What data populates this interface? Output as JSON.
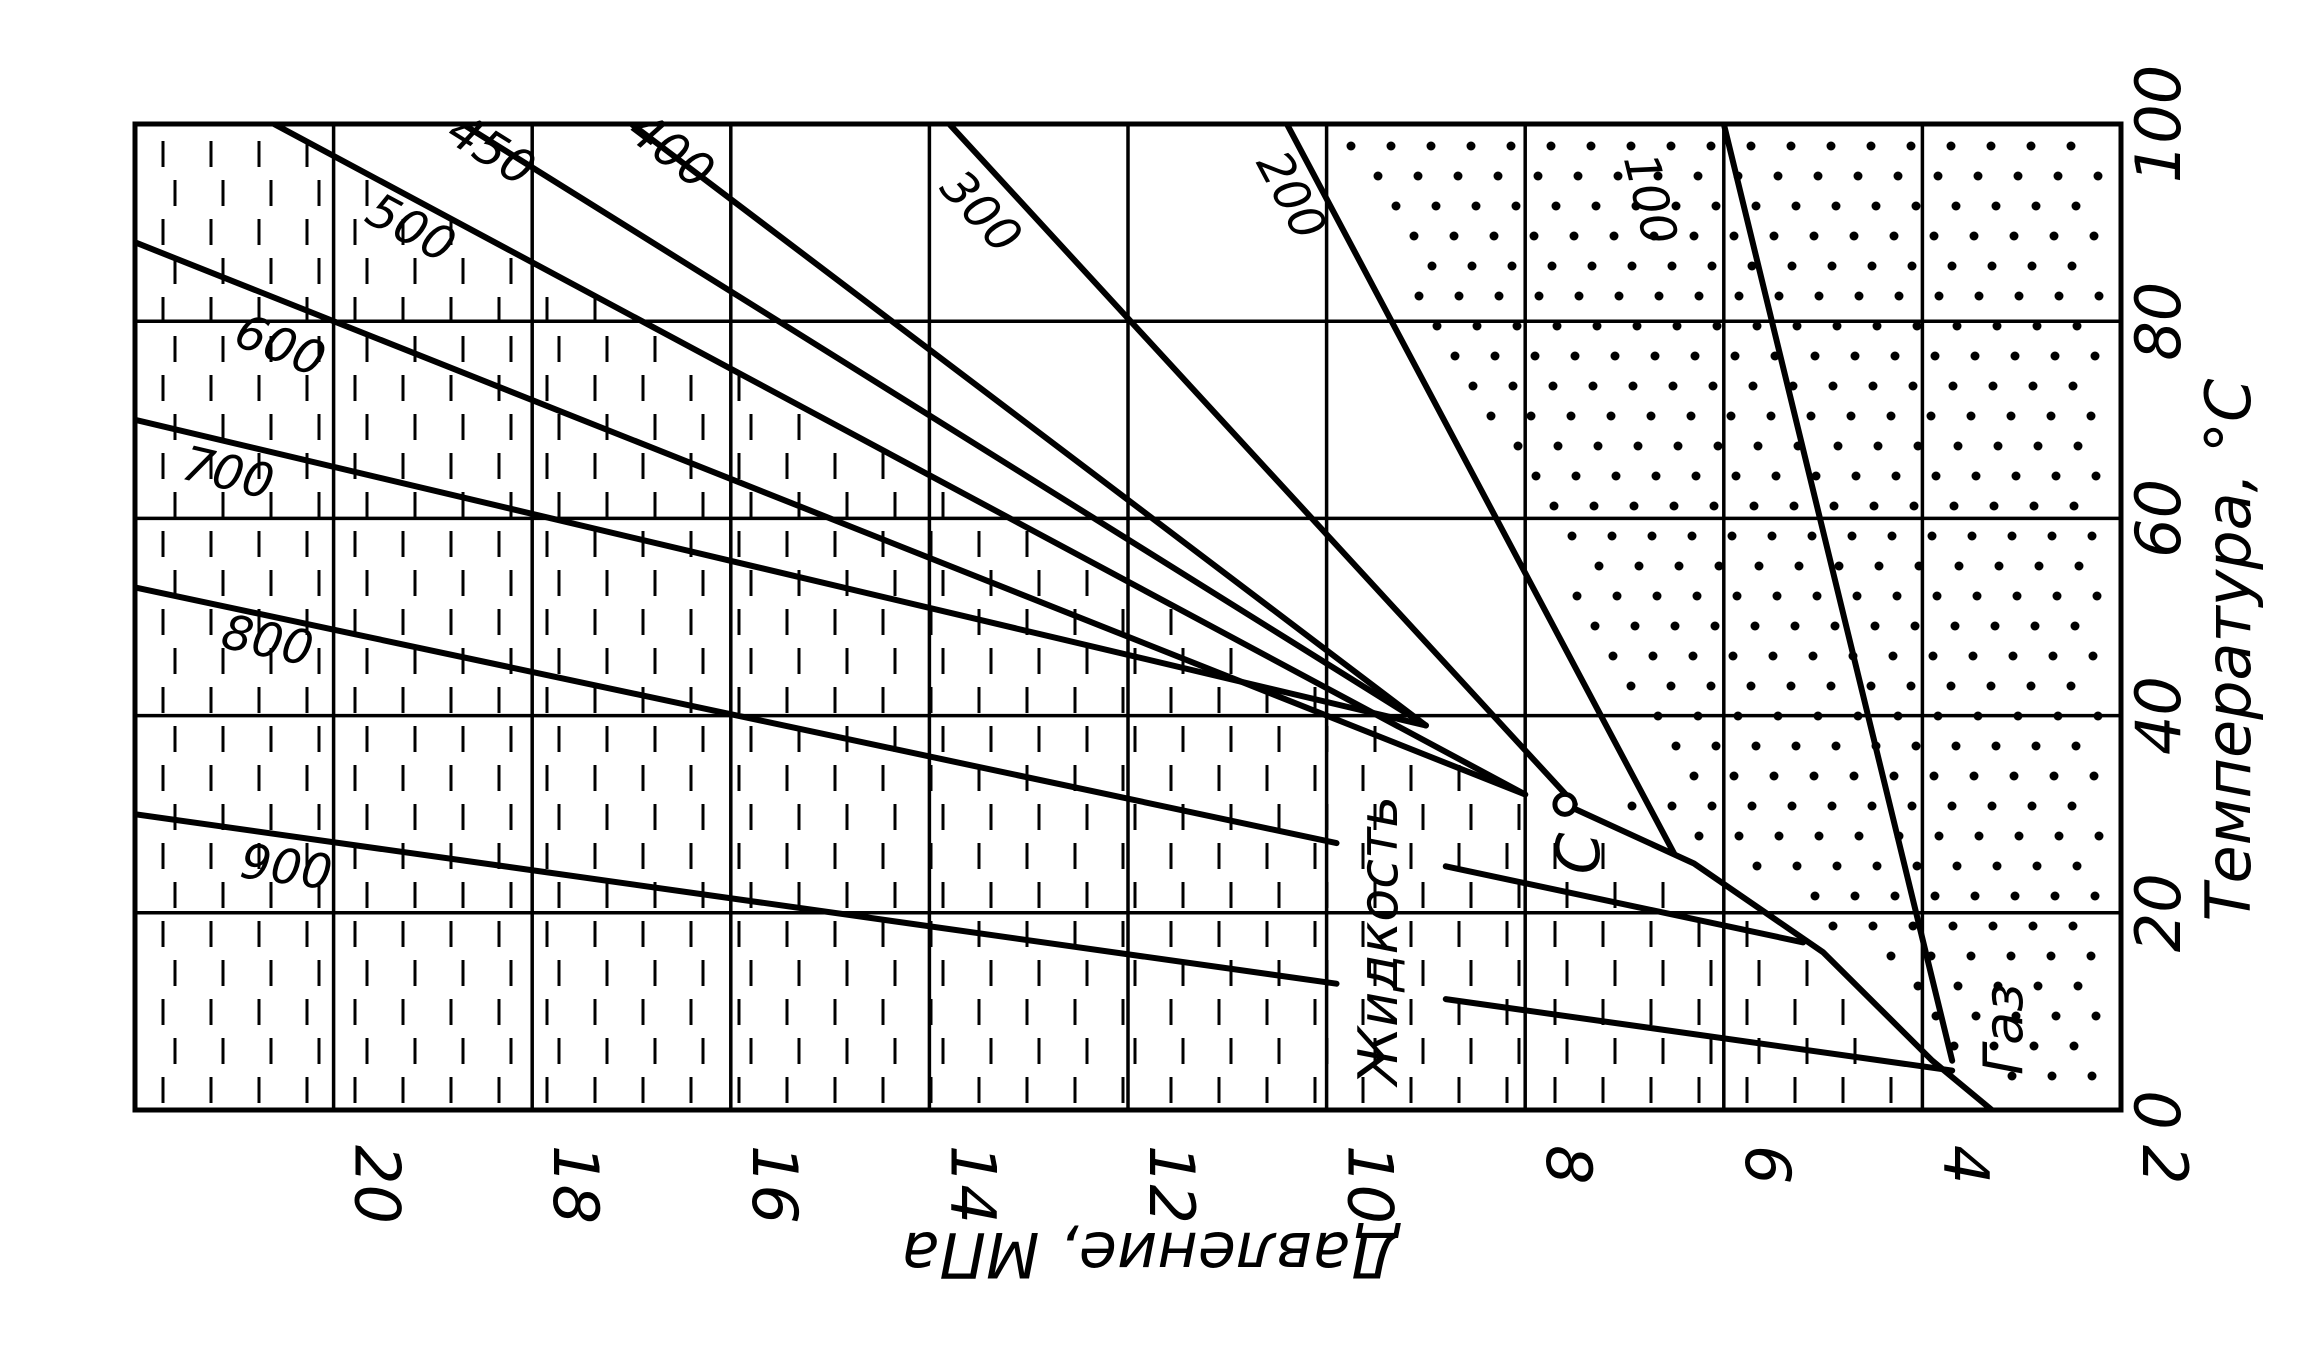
{
  "chart_data": {
    "type": "line",
    "xlabel": "Давление, МПа",
    "ylabel": "Температура, °C",
    "x_ticks": [
      "20",
      "18",
      "16",
      "14",
      "12",
      "10",
      "8",
      "6",
      "4",
      "2"
    ],
    "y_ticks": [
      "0",
      "20",
      "40",
      "60",
      "80",
      "100"
    ],
    "xlim": [
      22,
      2
    ],
    "ylim": [
      0,
      100
    ],
    "x_reversed": true,
    "grid": true,
    "regions": {
      "liquid": "Жидкость",
      "gas": "Газ"
    },
    "critical_point": {
      "label": "С",
      "x": 7.6,
      "y": 31
    },
    "phase_boundary": [
      {
        "x": 3.3,
        "y": 0
      },
      {
        "x": 3.9,
        "y": 5
      },
      {
        "x": 5.0,
        "y": 16
      },
      {
        "x": 6.3,
        "y": 25
      },
      {
        "x": 7.6,
        "y": 31
      }
    ],
    "series": [
      {
        "name": "100",
        "points": [
          {
            "x": 3.7,
            "y": 5
          },
          {
            "x": 6.0,
            "y": 100
          }
        ]
      },
      {
        "name": "200",
        "points": [
          {
            "x": 6.5,
            "y": 26
          },
          {
            "x": 10.4,
            "y": 100
          }
        ]
      },
      {
        "name": "300",
        "points": [
          {
            "x": 7.5,
            "y": 31
          },
          {
            "x": 13.8,
            "y": 100
          }
        ]
      },
      {
        "name": "400",
        "points": [
          {
            "x": 9.0,
            "y": 39
          },
          {
            "x": 17.0,
            "y": 100
          }
        ]
      },
      {
        "name": "450",
        "points": [
          {
            "x": 9.0,
            "y": 39
          },
          {
            "x": 18.7,
            "y": 100
          }
        ]
      },
      {
        "name": "500",
        "points": [
          {
            "x": 8.0,
            "y": 32
          },
          {
            "x": 20.6,
            "y": 100
          }
        ]
      },
      {
        "name": "600",
        "points": [
          {
            "x": 8.0,
            "y": 32
          },
          {
            "x": 22.0,
            "y": 88
          }
        ]
      },
      {
        "name": "700",
        "points": [
          {
            "x": 9.0,
            "y": 39
          },
          {
            "x": 22.0,
            "y": 70
          }
        ]
      },
      {
        "name": "800",
        "points": [
          {
            "x": 5.2,
            "y": 17
          },
          {
            "x": 22.0,
            "y": 53
          }
        ]
      },
      {
        "name": "900",
        "points": [
          {
            "x": 3.7,
            "y": 4
          },
          {
            "x": 22.0,
            "y": 30
          }
        ]
      }
    ],
    "line_gaps": [
      {
        "series": "800",
        "x": [
          8.8,
          9.9
        ]
      },
      {
        "series": "900",
        "x": [
          8.8,
          9.9
        ]
      }
    ],
    "label_positions": [
      {
        "series": "100",
        "x": 6.9,
        "y": 92
      },
      {
        "series": "200",
        "x": 10.5,
        "y": 92
      },
      {
        "series": "300",
        "x": 13.6,
        "y": 90
      },
      {
        "series": "400",
        "x": 16.7,
        "y": 96
      },
      {
        "series": "450",
        "x": 18.5,
        "y": 96
      },
      {
        "series": "500",
        "x": 19.3,
        "y": 88
      },
      {
        "series": "600",
        "x": 20.6,
        "y": 76
      },
      {
        "series": "700",
        "x": 21.1,
        "y": 63
      },
      {
        "series": "800",
        "x": 20.7,
        "y": 46
      },
      {
        "series": "900",
        "x": 20.5,
        "y": 23
      }
    ]
  }
}
